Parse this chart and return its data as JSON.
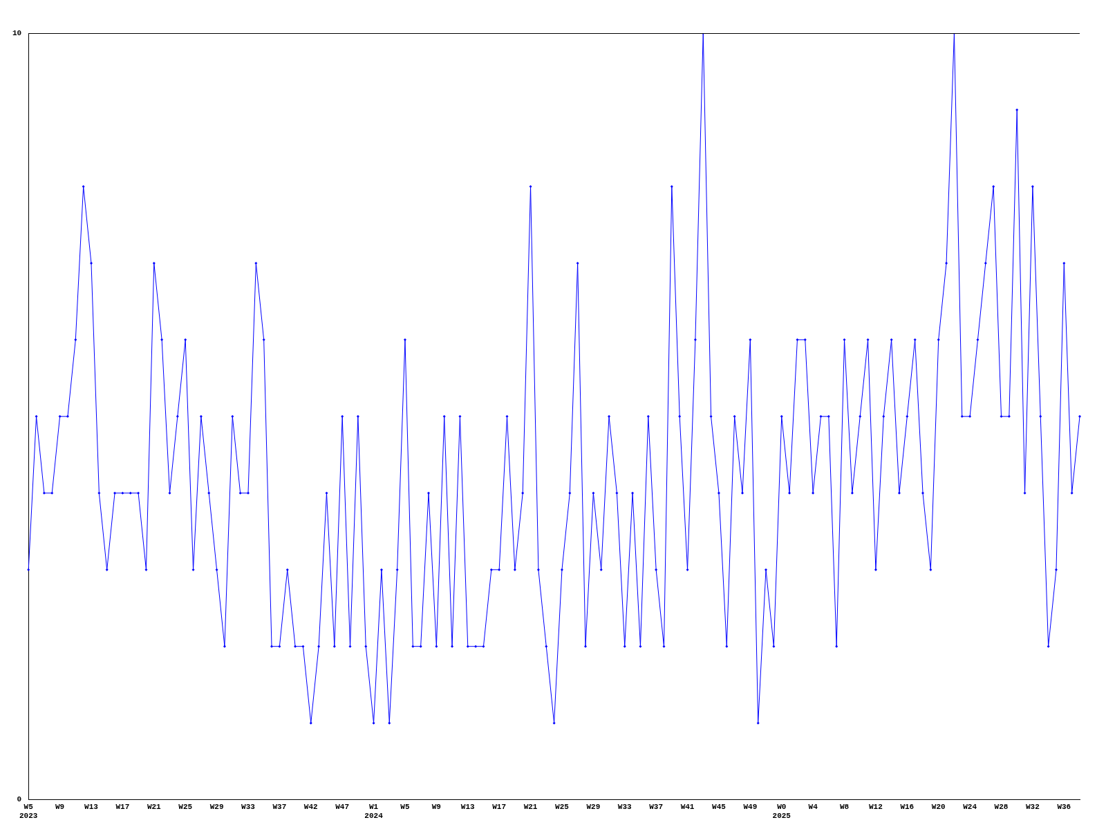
{
  "chart_data": {
    "type": "line",
    "categories": [
      "W5\n2023",
      null,
      null,
      null,
      "W9",
      null,
      null,
      null,
      "W13",
      null,
      null,
      null,
      "W17",
      null,
      null,
      null,
      "W21",
      null,
      null,
      null,
      "W25",
      null,
      null,
      null,
      "W29",
      null,
      null,
      null,
      "W33",
      null,
      null,
      null,
      "W37",
      null,
      null,
      null,
      "W42",
      null,
      null,
      null,
      "W47",
      null,
      null,
      null,
      "W1\n2024",
      null,
      null,
      null,
      "W5",
      null,
      null,
      null,
      "W9",
      null,
      null,
      null,
      "W13",
      null,
      null,
      null,
      "W17",
      null,
      null,
      null,
      "W21",
      null,
      null,
      null,
      "W25",
      null,
      null,
      null,
      "W29",
      null,
      null,
      null,
      "W33",
      null,
      null,
      null,
      "W37",
      null,
      null,
      null,
      "W41",
      null,
      null,
      null,
      "W45",
      null,
      null,
      null,
      "W49",
      null,
      null,
      null,
      "W0\n2025",
      null,
      null,
      null,
      "W4",
      null,
      null,
      null,
      "W8",
      null,
      null,
      null,
      "W12",
      null,
      null,
      null,
      "W16",
      null,
      null,
      null,
      "W20",
      null,
      null,
      null,
      "W24",
      null,
      null,
      null,
      "W28",
      null,
      null,
      null,
      "W32",
      null,
      null,
      null,
      "W36",
      null,
      null
    ],
    "series": [
      {
        "color": "#0000ff",
        "values": [
          3,
          5,
          4,
          4,
          5,
          5,
          6,
          8,
          7,
          4,
          3,
          4,
          4,
          4,
          4,
          3,
          7,
          6,
          4,
          5,
          6,
          3,
          5,
          4,
          3,
          2,
          5,
          4,
          4,
          7,
          6,
          2,
          2,
          3,
          2,
          2,
          1,
          2,
          4,
          2,
          5,
          2,
          5,
          2,
          1,
          3,
          1,
          3,
          6,
          2,
          2,
          4,
          2,
          5,
          2,
          5,
          2,
          2,
          2,
          3,
          3,
          5,
          3,
          4,
          8,
          3,
          2,
          1,
          3,
          4,
          7,
          2,
          4,
          3,
          5,
          4,
          2,
          4,
          2,
          5,
          3,
          2,
          8,
          5,
          3,
          6,
          10,
          5,
          4,
          2,
          5,
          4,
          6,
          1,
          3,
          2,
          5,
          4,
          6,
          6,
          4,
          5,
          5,
          2,
          6,
          4,
          5,
          6,
          3,
          5,
          6,
          4,
          5,
          6,
          4,
          3,
          6,
          7,
          10,
          5,
          5,
          6,
          7,
          8,
          5,
          5,
          9,
          4,
          8,
          5,
          2,
          3,
          7,
          4,
          5
        ]
      }
    ],
    "ylim": [
      0,
      10
    ],
    "yticks": [
      0,
      10
    ],
    "grid": false,
    "legend": false,
    "marker": "diamond",
    "line_style": "solid"
  }
}
